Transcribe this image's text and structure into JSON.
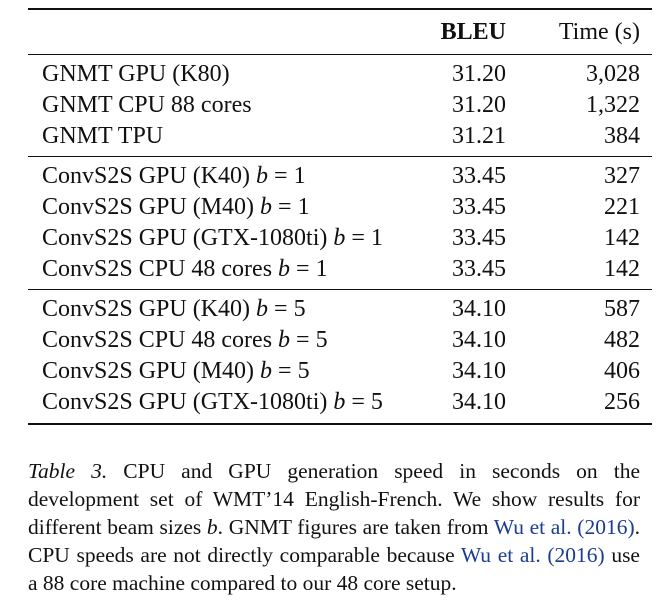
{
  "table": {
    "headers": {
      "model": "",
      "bleu": "BLEU",
      "time": "Time (s)"
    },
    "groups": [
      {
        "rows": [
          {
            "model": "GNMT GPU (K80)",
            "beam": "",
            "bleu": "31.20",
            "time": "3,028"
          },
          {
            "model": "GNMT CPU 88 cores",
            "beam": "",
            "bleu": "31.20",
            "time": "1,322"
          },
          {
            "model": "GNMT TPU",
            "beam": "",
            "bleu": "31.21",
            "time": "384"
          }
        ]
      },
      {
        "rows": [
          {
            "model": "ConvS2S GPU (K40)",
            "beam": "= 1",
            "bleu": "33.45",
            "time": "327"
          },
          {
            "model": "ConvS2S GPU (M40)",
            "beam": "= 1",
            "bleu": "33.45",
            "time": "221"
          },
          {
            "model": "ConvS2S GPU (GTX-1080ti)",
            "beam": "= 1",
            "bleu": "33.45",
            "time": "142"
          },
          {
            "model": "ConvS2S CPU 48 cores",
            "beam": "= 1",
            "bleu": "33.45",
            "time": "142"
          }
        ]
      },
      {
        "rows": [
          {
            "model": "ConvS2S GPU (K40)",
            "beam": "= 5",
            "bleu": "34.10",
            "time": "587"
          },
          {
            "model": "ConvS2S CPU 48 cores",
            "beam": "= 5",
            "bleu": "34.10",
            "time": "482"
          },
          {
            "model": "ConvS2S GPU (M40)",
            "beam": "= 5",
            "bleu": "34.10",
            "time": "406"
          },
          {
            "model": "ConvS2S GPU (GTX-1080ti)",
            "beam": "= 5",
            "bleu": "34.10",
            "time": "256"
          }
        ]
      }
    ],
    "beam_symbol": "b"
  },
  "caption": {
    "label": "Table 3.",
    "part1": "CPU and GPU generation speed in seconds on the development set of WMT’14 English-French. We show results for different beam sizes ",
    "beam_var": "b",
    "part2": ". GNMT figures are taken from ",
    "cite1": "Wu et al. (2016)",
    "part3": ". CPU speeds are not directly comparable because ",
    "cite2": "Wu et al. (2016)",
    "part4": " use a 88 core machine compared to our 48 core setup."
  },
  "colors": {
    "citation": "#1a3d8f",
    "text": "#111111"
  }
}
